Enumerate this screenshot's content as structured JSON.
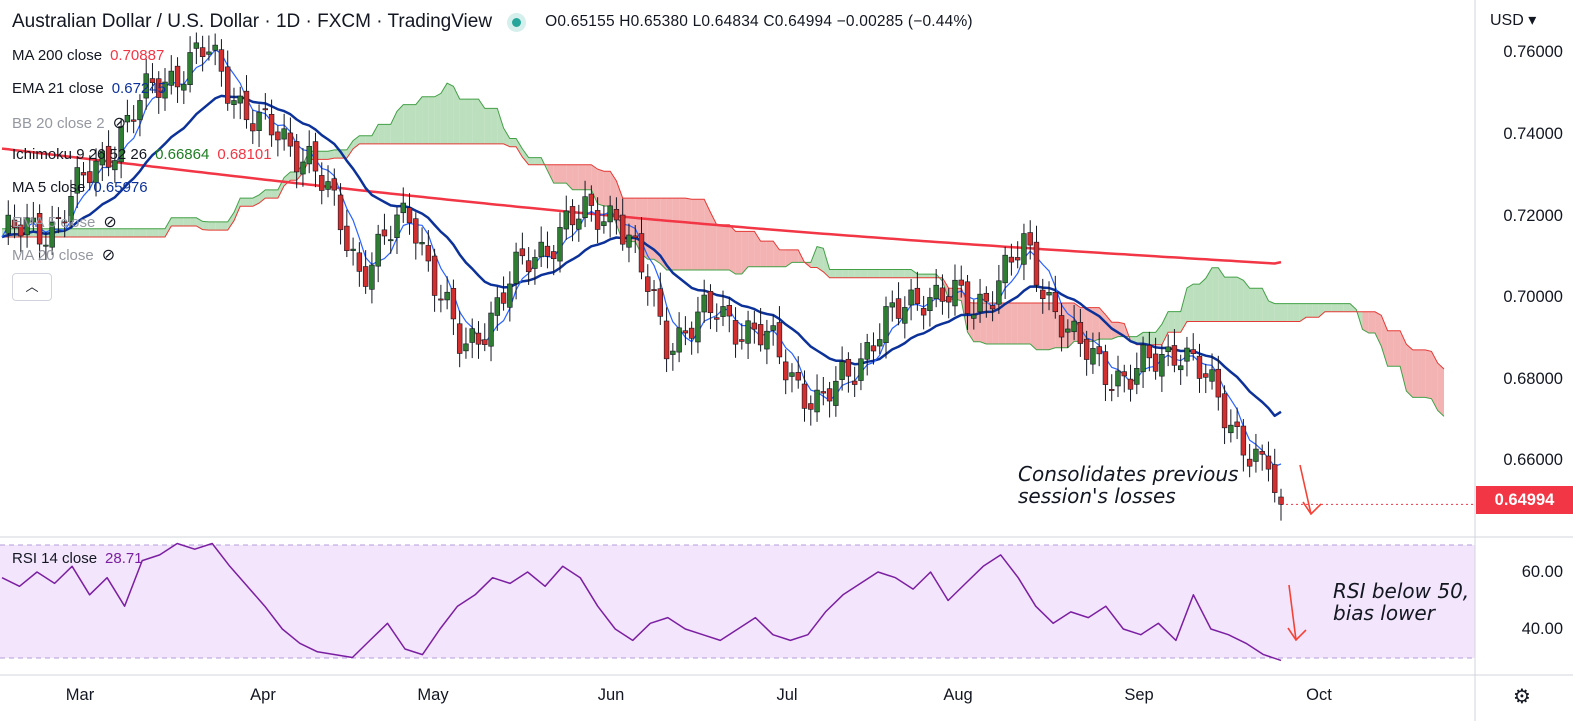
{
  "header": {
    "title": "Australian Dollar / U.S. Dollar · 1D · FXCM · TradingView",
    "ohlc": "O0.65155 H0.65380 L0.64834 C0.64994 −0.00285 (−0.44%)"
  },
  "indicators": [
    {
      "label": "MA 200 close",
      "value": "0.70887",
      "color": "#f23645"
    },
    {
      "label": "EMA 21 close",
      "value": "0.67245",
      "color": "#0c3299"
    },
    {
      "label": "BB 20 close 2",
      "value": "",
      "color": "#9598a1",
      "hidden": true
    },
    {
      "label": "Ichimoku 9 26 52 26",
      "value": "0.66864",
      "value2": "0.68101",
      "color": "#1e7d22",
      "color2": "#f23645"
    },
    {
      "label": "MA 5 close",
      "value": "0.65976",
      "color": "#0c3299"
    },
    {
      "label": "EMA 5 close",
      "value": "",
      "color": "#9598a1",
      "hidden": true
    },
    {
      "label": "MA 20 close",
      "value": "",
      "color": "#9598a1",
      "hidden": true
    }
  ],
  "collapse_icon": "chevron-up-icon",
  "currency": "USD",
  "price_tag": "0.64994",
  "rsi": {
    "label": "RSI 14 close",
    "value": "28.71"
  },
  "annotations": {
    "price_note_1": "Consolidates previous",
    "price_note_2": "session's losses",
    "rsi_note_1": "RSI below 50,",
    "rsi_note_2": "bias lower"
  },
  "colors": {
    "up": "#2e7d32",
    "down": "#d32f2f",
    "ma200": "#f23645",
    "ema21": "#0c3299",
    "ma5": "#2962ff",
    "cloud_bull": "#a5d6a7",
    "cloud_bear": "#ef9a9a",
    "rsi": "#7b1fa2"
  },
  "chart_data": [
    {
      "type": "candlestick",
      "title": "Australian Dollar / U.S. Dollar · 1D · FXCM",
      "y_ticks": [
        "0.76000",
        "0.74000",
        "0.72000",
        "0.70000",
        "0.68000",
        "0.66000"
      ],
      "x_ticks": [
        "Mar",
        "Apr",
        "May",
        "Jun",
        "Jul",
        "Aug",
        "Sep",
        "Oct"
      ],
      "ylim": [
        0.648,
        0.762
      ],
      "close_series": [
        {
          "date": "Mar",
          "close": 0.715
        },
        {
          "date": "mid-Mar",
          "close": 0.718
        },
        {
          "date": "late-Mar",
          "close": 0.735
        },
        {
          "date": "Apr",
          "close": 0.752
        },
        {
          "date": "early-Apr",
          "close": 0.76
        },
        {
          "date": "mid-Apr",
          "close": 0.742
        },
        {
          "date": "late-Apr",
          "close": 0.735
        },
        {
          "date": "May",
          "close": 0.707
        },
        {
          "date": "early-May",
          "close": 0.721
        },
        {
          "date": "mid-May",
          "close": 0.686
        },
        {
          "date": "late-May",
          "close": 0.705
        },
        {
          "date": "Jun",
          "close": 0.718
        },
        {
          "date": "early-Jun",
          "close": 0.722
        },
        {
          "date": "mid-Jun",
          "close": 0.69
        },
        {
          "date": "late-Jun",
          "close": 0.697
        },
        {
          "date": "Jul",
          "close": 0.689
        },
        {
          "date": "mid-Jul",
          "close": 0.673
        },
        {
          "date": "late-Jul",
          "close": 0.69
        },
        {
          "date": "Aug",
          "close": 0.702
        },
        {
          "date": "early-Aug",
          "close": 0.698
        },
        {
          "date": "mid-Aug",
          "close": 0.712
        },
        {
          "date": "late-Aug",
          "close": 0.688
        },
        {
          "date": "Sep",
          "close": 0.68
        },
        {
          "date": "early-Sep",
          "close": 0.689
        },
        {
          "date": "mid-Sep",
          "close": 0.671
        },
        {
          "date": "late-Sep",
          "close": 0.65
        }
      ],
      "series": [
        {
          "name": "MA 200 close",
          "last": 0.70887
        },
        {
          "name": "EMA 21 close",
          "last": 0.67245
        },
        {
          "name": "MA 5 close",
          "last": 0.65976
        },
        {
          "name": "Ichimoku 9 26 52 26",
          "last": 0.66864,
          "last2": 0.68101
        }
      ],
      "last_close": 0.64994
    },
    {
      "type": "line",
      "title": "RSI 14 close",
      "y_ticks": [
        "60.00",
        "40.00"
      ],
      "ylim": [
        29,
        70
      ],
      "values": [
        58,
        55,
        60,
        56,
        62,
        52,
        58,
        48,
        64,
        66,
        70,
        68,
        70,
        62,
        55,
        48,
        40,
        35,
        32,
        31,
        30,
        36,
        42,
        33,
        31,
        40,
        48,
        52,
        58,
        56,
        60,
        55,
        62,
        58,
        48,
        40,
        36,
        42,
        44,
        40,
        38,
        36,
        40,
        44,
        38,
        36,
        38,
        46,
        52,
        56,
        60,
        58,
        54,
        60,
        50,
        56,
        62,
        66,
        58,
        48,
        42,
        46,
        44,
        48,
        40,
        38,
        42,
        36,
        52,
        40,
        38,
        35,
        31,
        29
      ],
      "last": 28.71
    }
  ]
}
